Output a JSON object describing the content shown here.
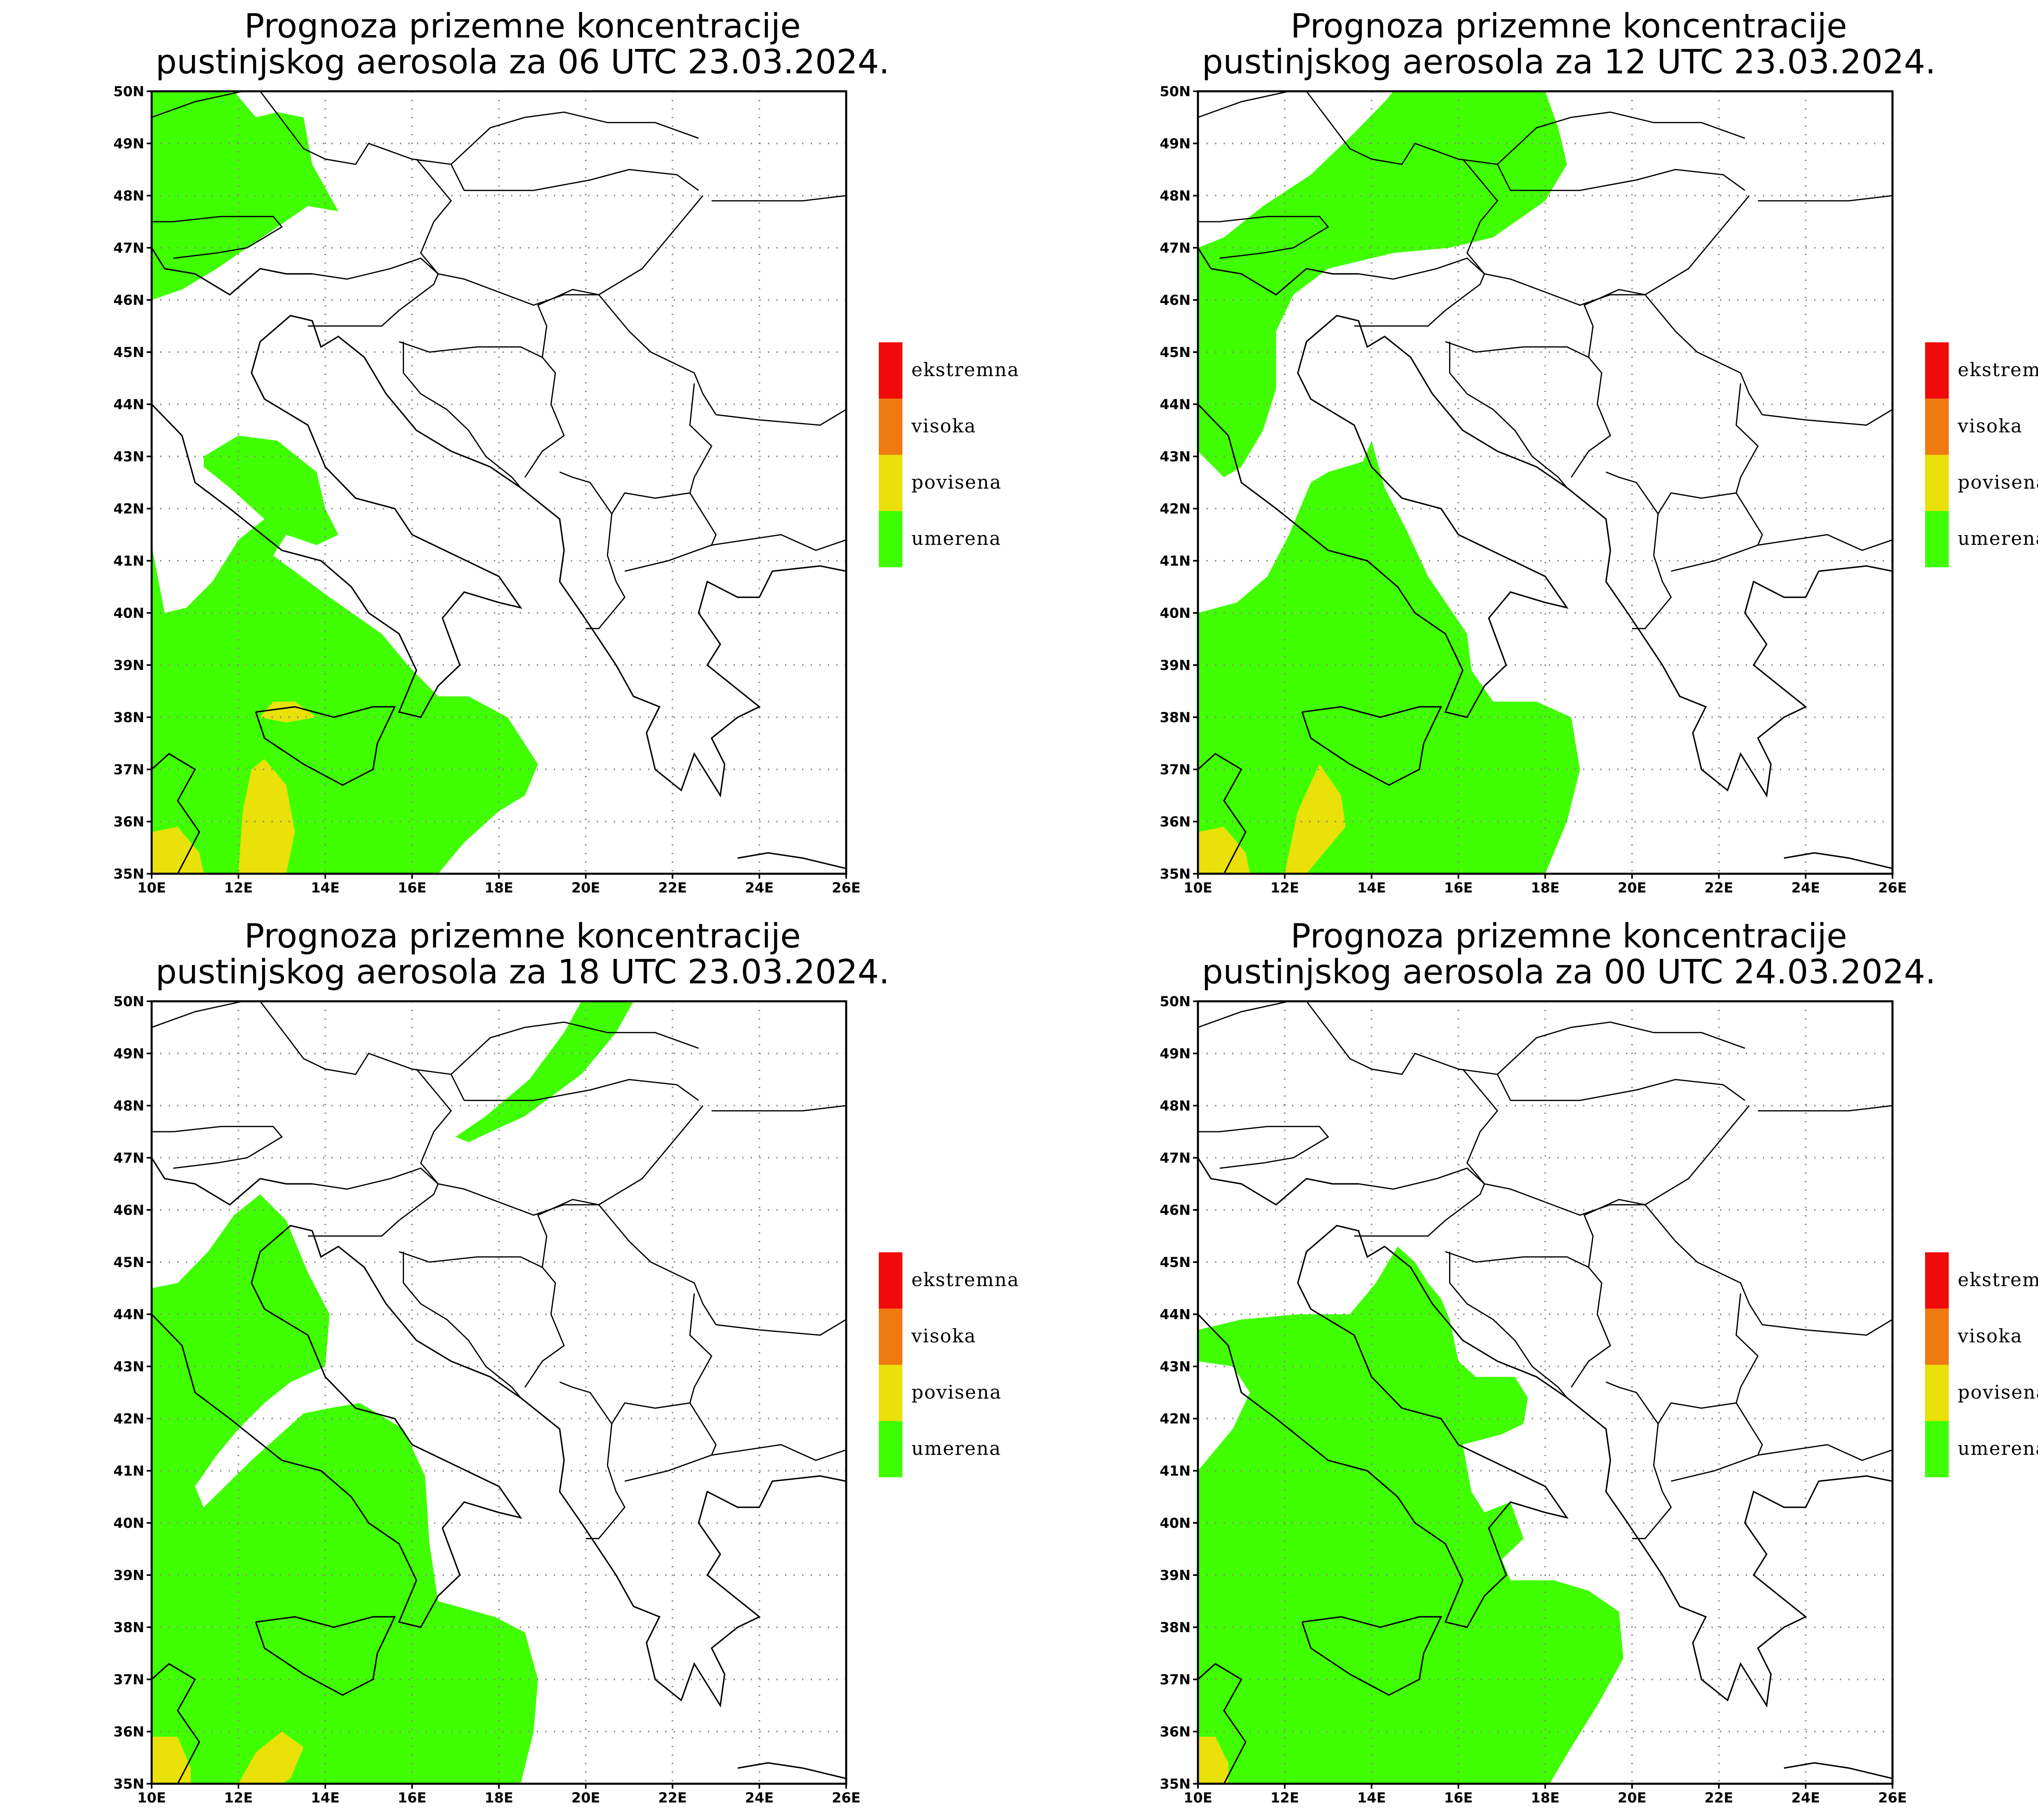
{
  "panels": [
    {
      "title_line1": "Prognoza prizemne koncentracije",
      "title_line2": "pustinjskog aerosola za 06 UTC 23.03.2024."
    },
    {
      "title_line1": "Prognoza prizemne koncentracije",
      "title_line2": "pustinjskog aerosola za 12 UTC 23.03.2024."
    },
    {
      "title_line1": "Prognoza prizemne koncentracije",
      "title_line2": "pustinjskog aerosola za 18 UTC 23.03.2024."
    },
    {
      "title_line1": "Prognoza prizemne koncentracije",
      "title_line2": "pustinjskog aerosola za 00 UTC 24.03.2024."
    }
  ],
  "map": {
    "lon_range": [
      10,
      26
    ],
    "lat_range": [
      35,
      50
    ],
    "lon_ticks": [
      "10E",
      "12E",
      "14E",
      "16E",
      "18E",
      "20E",
      "22E",
      "24E",
      "26E"
    ],
    "lat_ticks": [
      "35N",
      "36N",
      "37N",
      "38N",
      "39N",
      "40N",
      "41N",
      "42N",
      "43N",
      "44N",
      "45N",
      "46N",
      "47N",
      "48N",
      "49N",
      "50N"
    ],
    "grid": "dotted"
  },
  "legend": {
    "items": [
      {
        "label": "ekstremna",
        "color": "#f00a0a"
      },
      {
        "label": "visoka",
        "color": "#ee7a10"
      },
      {
        "label": "povisena",
        "color": "#eae00a"
      },
      {
        "label": "umerena",
        "color": "#40ff00"
      }
    ]
  }
}
